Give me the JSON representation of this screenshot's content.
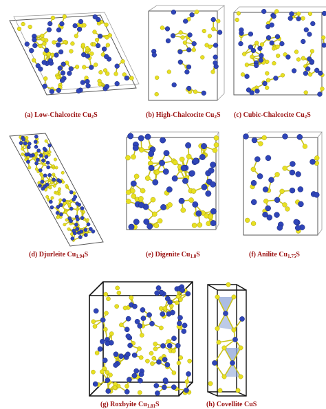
{
  "figure": {
    "panels": [
      {
        "id": "a",
        "caption_main": "(a) Low-Chalcocite Cu",
        "caption_sub": "2",
        "caption_tail": "S"
      },
      {
        "id": "b",
        "caption_main": "(b) High-Chalcocite Cu",
        "caption_sub": "2",
        "caption_tail": "S"
      },
      {
        "id": "c",
        "caption_main": "(c) Cubic-Chalcocite Cu",
        "caption_sub": "2",
        "caption_tail": "S"
      },
      {
        "id": "d",
        "caption_main": "(d) Djurleite Cu",
        "caption_sub": "1.94",
        "caption_tail": "S"
      },
      {
        "id": "e",
        "caption_main": "(e) Digenite Cu",
        "caption_sub": "1.8",
        "caption_tail": "S"
      },
      {
        "id": "f",
        "caption_main": "(f) Anilite Cu",
        "caption_sub": "1.75",
        "caption_tail": "S"
      },
      {
        "id": "g",
        "caption_main": "(g) Roxbyite Cu",
        "caption_sub": "1.81",
        "caption_tail": "S"
      },
      {
        "id": "h",
        "caption_main": "(h) Covellite CuS",
        "caption_sub": "",
        "caption_tail": ""
      }
    ],
    "colors": {
      "copper_atom": "#2f45b8",
      "sulfur_atom": "#e8e022",
      "cell_edge": "#222222",
      "caption": "#9a1010",
      "tetrahedron": "#8fa6d8"
    }
  }
}
